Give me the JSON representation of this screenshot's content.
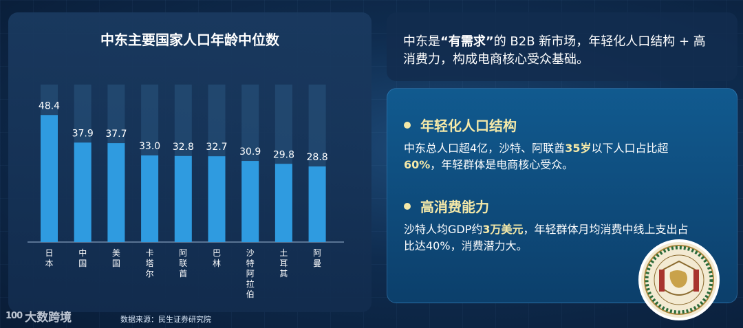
{
  "chart_data": {
    "type": "bar",
    "title": "中东主要国家人口年龄中位数",
    "categories": [
      "日本",
      "中国",
      "美国",
      "卡塔尔",
      "阿联酋",
      "巴林",
      "沙特阿拉伯",
      "土耳其",
      "阿曼"
    ],
    "values": [
      48.4,
      37.9,
      37.7,
      33.0,
      32.8,
      32.7,
      30.9,
      29.8,
      28.8
    ],
    "value_labels": [
      "48.4",
      "37.9",
      "37.7",
      "33.0",
      "32.8",
      "32.7",
      "30.9",
      "29.8",
      "28.8"
    ],
    "ylim": [
      0,
      60
    ],
    "grid": false,
    "legend": "none",
    "bar_color": "#2f9be0",
    "track_color": "#2a5580"
  },
  "source": "数据来源：民生证券研究院",
  "brand": {
    "mark": "100",
    "name": "大数跨境"
  },
  "headline": {
    "p1": "中东是",
    "q1": "“",
    "em": "有需求",
    "q2": "”",
    "p2": "的 B2B 新市场，年轻化人口结构 + 高消费力，构成电商核心受众基础。"
  },
  "sections": {
    "youth": {
      "title": "年轻化人口结构",
      "t1": "中东总人口超4亿，沙特、阿联酋",
      "h1": "35岁",
      "t2": "以下人口占比超",
      "h2": "60%",
      "t3": "，年轻群体是电商核心受众。"
    },
    "spending": {
      "title": "高消费能力",
      "t1": "沙特人均GDP约",
      "h1": "3万美元",
      "t2": "，年轻群体月均消费中线上支出占比达40%，消费潜力大。"
    }
  },
  "colors": {
    "accent": "#f5e9a8",
    "background": "#0f2c4f"
  }
}
